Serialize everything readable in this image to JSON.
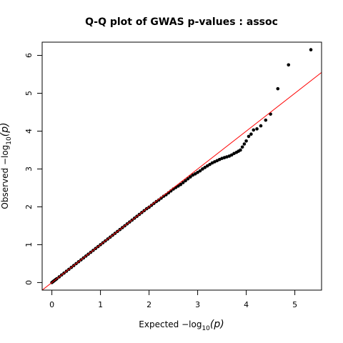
{
  "chart_data": {
    "type": "scatter",
    "title": "Q-Q plot of GWAS p-values : assoc",
    "xlabel": {
      "prefix": "Expected  ",
      "minus_log": "−log",
      "sub": "10",
      "arg": "(p)"
    },
    "ylabel": {
      "prefix": "Observed  ",
      "minus_log": "−log",
      "sub": "10",
      "arg": "(p)"
    },
    "xlim": [
      -0.2,
      5.55
    ],
    "ylim": [
      -0.2,
      6.35
    ],
    "x_ticks": [
      0,
      1,
      2,
      3,
      4,
      5
    ],
    "y_ticks": [
      0,
      1,
      2,
      3,
      4,
      5,
      6
    ],
    "reference_line": {
      "intercept": 0,
      "slope": 1,
      "color": "#ff0000"
    },
    "point_color": "#000000",
    "grid": false,
    "points": [
      [
        0.0,
        0.0
      ],
      [
        0.02,
        0.02
      ],
      [
        0.04,
        0.04
      ],
      [
        0.06,
        0.06
      ],
      [
        0.08,
        0.08
      ],
      [
        0.1,
        0.1
      ],
      [
        0.15,
        0.15
      ],
      [
        0.2,
        0.2
      ],
      [
        0.25,
        0.25
      ],
      [
        0.3,
        0.3
      ],
      [
        0.35,
        0.35
      ],
      [
        0.4,
        0.4
      ],
      [
        0.45,
        0.45
      ],
      [
        0.5,
        0.5
      ],
      [
        0.55,
        0.55
      ],
      [
        0.6,
        0.6
      ],
      [
        0.65,
        0.65
      ],
      [
        0.7,
        0.7
      ],
      [
        0.75,
        0.75
      ],
      [
        0.8,
        0.8
      ],
      [
        0.85,
        0.85
      ],
      [
        0.9,
        0.9
      ],
      [
        0.95,
        0.95
      ],
      [
        1.0,
        1.0
      ],
      [
        1.05,
        1.05
      ],
      [
        1.1,
        1.1
      ],
      [
        1.15,
        1.15
      ],
      [
        1.2,
        1.2
      ],
      [
        1.25,
        1.25
      ],
      [
        1.3,
        1.3
      ],
      [
        1.35,
        1.35
      ],
      [
        1.4,
        1.4
      ],
      [
        1.45,
        1.45
      ],
      [
        1.5,
        1.5
      ],
      [
        1.55,
        1.55
      ],
      [
        1.6,
        1.6
      ],
      [
        1.65,
        1.65
      ],
      [
        1.7,
        1.7
      ],
      [
        1.75,
        1.75
      ],
      [
        1.8,
        1.8
      ],
      [
        1.85,
        1.85
      ],
      [
        1.9,
        1.9
      ],
      [
        1.95,
        1.95
      ],
      [
        2.0,
        1.99
      ],
      [
        2.05,
        2.04
      ],
      [
        2.1,
        2.09
      ],
      [
        2.15,
        2.14
      ],
      [
        2.2,
        2.18
      ],
      [
        2.25,
        2.23
      ],
      [
        2.3,
        2.28
      ],
      [
        2.35,
        2.32
      ],
      [
        2.4,
        2.37
      ],
      [
        2.45,
        2.42
      ],
      [
        2.5,
        2.47
      ],
      [
        2.55,
        2.51
      ],
      [
        2.6,
        2.55
      ],
      [
        2.65,
        2.59
      ],
      [
        2.7,
        2.64
      ],
      [
        2.75,
        2.69
      ],
      [
        2.8,
        2.74
      ],
      [
        2.85,
        2.79
      ],
      [
        2.9,
        2.84
      ],
      [
        2.95,
        2.87
      ],
      [
        3.0,
        2.91
      ],
      [
        3.05,
        2.95
      ],
      [
        3.1,
        3.0
      ],
      [
        3.15,
        3.04
      ],
      [
        3.2,
        3.08
      ],
      [
        3.25,
        3.12
      ],
      [
        3.3,
        3.16
      ],
      [
        3.35,
        3.19
      ],
      [
        3.4,
        3.22
      ],
      [
        3.45,
        3.25
      ],
      [
        3.5,
        3.28
      ],
      [
        3.55,
        3.3
      ],
      [
        3.6,
        3.32
      ],
      [
        3.65,
        3.34
      ],
      [
        3.7,
        3.37
      ],
      [
        3.75,
        3.41
      ],
      [
        3.8,
        3.44
      ],
      [
        3.84,
        3.47
      ],
      [
        3.88,
        3.5
      ],
      [
        3.92,
        3.58
      ],
      [
        3.96,
        3.66
      ],
      [
        4.0,
        3.74
      ],
      [
        4.05,
        3.86
      ],
      [
        4.1,
        3.92
      ],
      [
        4.15,
        4.03
      ],
      [
        4.22,
        4.06
      ],
      [
        4.3,
        4.14
      ],
      [
        4.4,
        4.29
      ],
      [
        4.5,
        4.45
      ],
      [
        4.65,
        5.12
      ],
      [
        4.87,
        5.75
      ],
      [
        5.33,
        6.15
      ]
    ]
  }
}
